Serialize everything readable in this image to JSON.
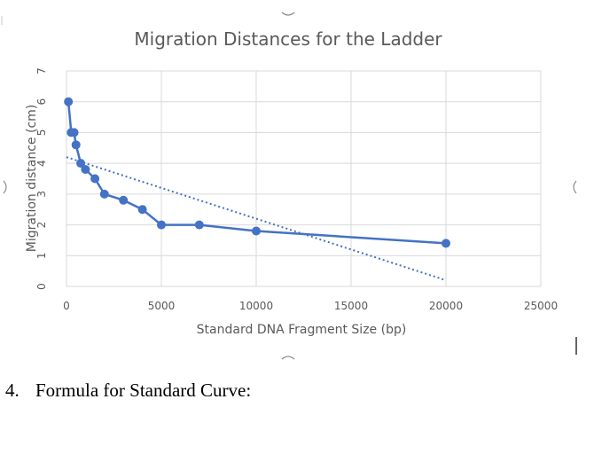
{
  "document": {
    "item_number": "4.",
    "item_text": "Formula for Standard Curve:"
  },
  "chart_data": {
    "type": "scatter",
    "title": "Migration Distances for the Ladder",
    "xlabel": "Standard DNA Fragment Size (bp)",
    "ylabel": "Migration distance (cm)",
    "xlim": [
      0,
      25000
    ],
    "ylim": [
      0,
      7
    ],
    "x_ticks": [
      0,
      5000,
      10000,
      15000,
      20000,
      25000
    ],
    "y_ticks": [
      0,
      1,
      2,
      3,
      4,
      5,
      6,
      7
    ],
    "grid": true,
    "legend": "none",
    "series": [
      {
        "style": "line-with-markers",
        "color": "#4472c4",
        "x": [
          100,
          250,
          400,
          500,
          750,
          1000,
          1500,
          2000,
          3000,
          4000,
          5000,
          7000,
          10000,
          20000
        ],
        "y": [
          6.0,
          5.0,
          5.0,
          4.6,
          4.0,
          3.8,
          3.5,
          3.0,
          2.8,
          2.5,
          2.0,
          2.0,
          1.8,
          1.4
        ]
      }
    ],
    "trendline": {
      "type": "linear",
      "style": "dotted",
      "color": "#4472c4",
      "x": [
        0,
        20000
      ],
      "y": [
        4.2,
        0.2
      ]
    }
  }
}
